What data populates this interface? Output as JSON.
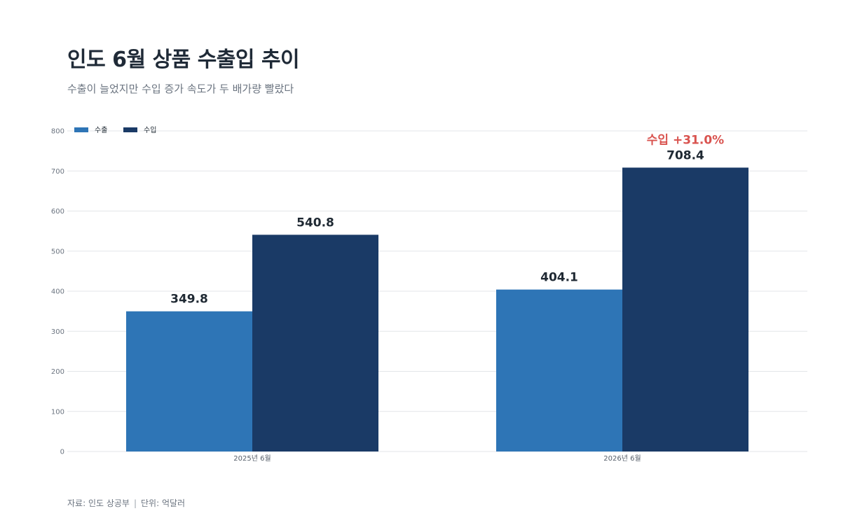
{
  "title": "인도 6월 상품 수출입 추이",
  "subtitle": "수출이 늘었지만 수입 증가 속도가 두 배가량 빨랐다",
  "footer": {
    "source": "자료: 인도 상공부",
    "separator": "|",
    "unit": "단위: 억달러"
  },
  "colors": {
    "export": "#2e75b6",
    "import": "#1a3a66",
    "annotation": "#d9534f",
    "grid": "#e3e6e9"
  },
  "chart_data": {
    "type": "bar",
    "categories": [
      "2025년 6월",
      "2026년 6월"
    ],
    "series": [
      {
        "name": "수출",
        "values": [
          349.8,
          404.1
        ],
        "labels": [
          "349.8",
          "404.1"
        ]
      },
      {
        "name": "수입",
        "values": [
          540.8,
          708.4
        ],
        "labels": [
          "540.8",
          "708.4"
        ]
      }
    ],
    "ylim": [
      0,
      800
    ],
    "yticks": [
      0,
      100,
      200,
      300,
      400,
      500,
      600,
      700,
      800
    ],
    "grid": true,
    "legend": "top-left",
    "annotation": {
      "series": 1,
      "category": 1,
      "text": "수입 +31.0%"
    }
  }
}
